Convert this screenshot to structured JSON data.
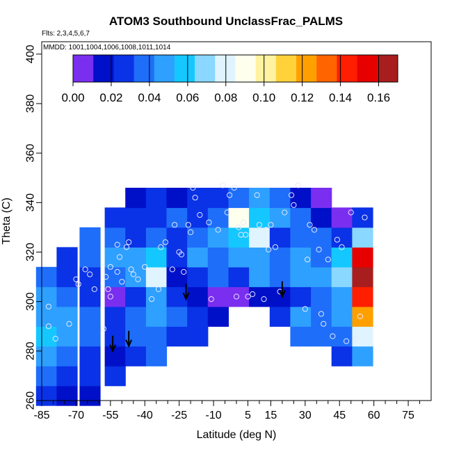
{
  "chart_data": {
    "type": "heatmap",
    "title": "ATOM3 Southbound UnclassFrac_PALMS",
    "flights_label": "Flts: 2,3,4,5,6,7",
    "mmdd_label": "MMDD: 1001,1004,1006,1008,1011,1014",
    "xlabel": "Latitude (deg N)",
    "ylabel": "Theta (C)",
    "xlim": [
      -85,
      85
    ],
    "ylim": [
      260,
      405
    ],
    "x_ticks": [
      -85,
      -70,
      -55,
      -40,
      -25,
      -10,
      5,
      15,
      30,
      45,
      60,
      75
    ],
    "x_ticks_minor": [
      -80,
      -75,
      -65,
      -60,
      -50,
      -45,
      -35,
      -30,
      -20,
      -15,
      -5,
      0,
      10,
      20,
      25,
      35,
      40,
      50,
      55,
      65,
      70,
      80
    ],
    "y_ticks": [
      260,
      280,
      300,
      320,
      340,
      360,
      380,
      400
    ],
    "colorbar": {
      "min": 0,
      "max": 0.17,
      "ticks": [
        "0.00",
        "0.02",
        "0.04",
        "0.06",
        "0.08",
        "0.10",
        "0.12",
        "0.14",
        "0.16"
      ],
      "colors": [
        "#7a2ef0",
        "#0010c8",
        "#0a32e6",
        "#1e6efa",
        "#2ea0ff",
        "#14c8ff",
        "#8ad7ff",
        "#dff4ff",
        "#ffffee",
        "#fff2a0",
        "#ffd23c",
        "#ffa000",
        "#ff6400",
        "#ff1e00",
        "#e60000",
        "#a81e1e"
      ]
    },
    "field": {
      "x": [
        -83,
        -74,
        -64,
        -53,
        -44,
        -35,
        -26,
        -17,
        -8,
        1,
        10,
        19,
        28,
        37,
        46,
        55
      ],
      "y": [
        262,
        270,
        278,
        286,
        294,
        302,
        310,
        318,
        326,
        334,
        342
      ],
      "values": [
        [
          0.03,
          0.02,
          0.02,
          null,
          null,
          null,
          null,
          null,
          null,
          null,
          null,
          null,
          null,
          null,
          null,
          null
        ],
        [
          0.04,
          0.03,
          0.03,
          0.03,
          null,
          null,
          null,
          null,
          null,
          null,
          null,
          null,
          null,
          null,
          null,
          null
        ],
        [
          0.05,
          0.04,
          0.03,
          0.02,
          0.03,
          0.04,
          null,
          null,
          null,
          null,
          null,
          null,
          null,
          null,
          0.03,
          0.05
        ],
        [
          0.06,
          0.05,
          0.04,
          0.03,
          0.04,
          0.04,
          0.03,
          0.03,
          null,
          null,
          null,
          null,
          0.04,
          0.04,
          0.04,
          0.08
        ],
        [
          0.05,
          0.05,
          0.04,
          0.03,
          0.04,
          0.05,
          0.04,
          0.03,
          0.02,
          null,
          null,
          0.03,
          0.05,
          0.04,
          0.05,
          0.12
        ],
        [
          0.05,
          0.04,
          0.03,
          0.01,
          0.03,
          0.05,
          0.03,
          0.02,
          0.01,
          0.01,
          0.02,
          0.02,
          0.03,
          0.04,
          0.05,
          0.14
        ],
        [
          0.04,
          0.03,
          0.03,
          0.04,
          0.05,
          0.08,
          0.02,
          0.03,
          0.04,
          0.03,
          0.05,
          0.04,
          0.05,
          0.05,
          0.07,
          0.16
        ],
        [
          null,
          0.03,
          0.04,
          0.05,
          0.05,
          0.06,
          0.03,
          0.05,
          0.04,
          0.05,
          0.05,
          0.04,
          0.05,
          0.04,
          0.06,
          0.15
        ],
        [
          null,
          null,
          0.04,
          0.04,
          0.03,
          0.04,
          0.03,
          0.04,
          0.05,
          0.06,
          0.08,
          0.03,
          0.04,
          0.04,
          0.03,
          0.07
        ],
        [
          null,
          null,
          null,
          0.03,
          0.03,
          0.03,
          0.04,
          0.03,
          0.04,
          0.09,
          0.06,
          0.05,
          0.04,
          0.02,
          0.01,
          0.03
        ],
        [
          null,
          null,
          null,
          null,
          0.02,
          0.03,
          0.02,
          0.03,
          0.03,
          0.04,
          0.05,
          0.04,
          0.02,
          0.01,
          null,
          null
        ]
      ]
    },
    "points": [
      [
        -82,
        298
      ],
      [
        -82,
        290
      ],
      [
        -79,
        285
      ],
      [
        -73,
        291
      ],
      [
        -70,
        309
      ],
      [
        -69,
        307
      ],
      [
        -66,
        313
      ],
      [
        -64,
        311
      ],
      [
        -62,
        305
      ],
      [
        -58,
        289
      ],
      [
        -57,
        310
      ],
      [
        -56,
        305
      ],
      [
        -55,
        302
      ],
      [
        -55,
        314
      ],
      [
        -52,
        312
      ],
      [
        -52,
        323
      ],
      [
        -51,
        318
      ],
      [
        -50,
        308
      ],
      [
        -48,
        322
      ],
      [
        -47,
        324
      ],
      [
        -46,
        313
      ],
      [
        -45,
        311
      ],
      [
        -43,
        309
      ],
      [
        -40,
        314
      ],
      [
        -37,
        301
      ],
      [
        -34,
        305
      ],
      [
        -33,
        322
      ],
      [
        -31,
        324
      ],
      [
        -28,
        313
      ],
      [
        -27,
        331
      ],
      [
        -25,
        320
      ],
      [
        -24,
        319
      ],
      [
        -23,
        312
      ],
      [
        -21,
        331
      ],
      [
        -20,
        328
      ],
      [
        -19,
        346
      ],
      [
        -18,
        342
      ],
      [
        -16,
        335
      ],
      [
        -12,
        332
      ],
      [
        -11,
        301
      ],
      [
        -8,
        329
      ],
      [
        -6,
        347
      ],
      [
        -4,
        336
      ],
      [
        -3,
        343
      ],
      [
        -1,
        346
      ],
      [
        0,
        302
      ],
      [
        1,
        330
      ],
      [
        2,
        327
      ],
      [
        3,
        332
      ],
      [
        4,
        327
      ],
      [
        5,
        302
      ],
      [
        7,
        303
      ],
      [
        9,
        343
      ],
      [
        10,
        331
      ],
      [
        12,
        301
      ],
      [
        13,
        329
      ],
      [
        14,
        321
      ],
      [
        15,
        331
      ],
      [
        17,
        322
      ],
      [
        19,
        304
      ],
      [
        21,
        336
      ],
      [
        24,
        343
      ],
      [
        25,
        339
      ],
      [
        27,
        347
      ],
      [
        30,
        297
      ],
      [
        31,
        317
      ],
      [
        32,
        331
      ],
      [
        34,
        329
      ],
      [
        36,
        321
      ],
      [
        37,
        295
      ],
      [
        38,
        291
      ],
      [
        40,
        317
      ],
      [
        42,
        286
      ],
      [
        44,
        325
      ],
      [
        46,
        322
      ],
      [
        48,
        284
      ],
      [
        50,
        336
      ],
      [
        52,
        285
      ],
      [
        54,
        294
      ],
      [
        56,
        334
      ]
    ],
    "arrows": [
      [
        -54,
        280
      ],
      [
        -47,
        282
      ],
      [
        -22,
        301
      ],
      [
        20,
        302
      ]
    ]
  }
}
